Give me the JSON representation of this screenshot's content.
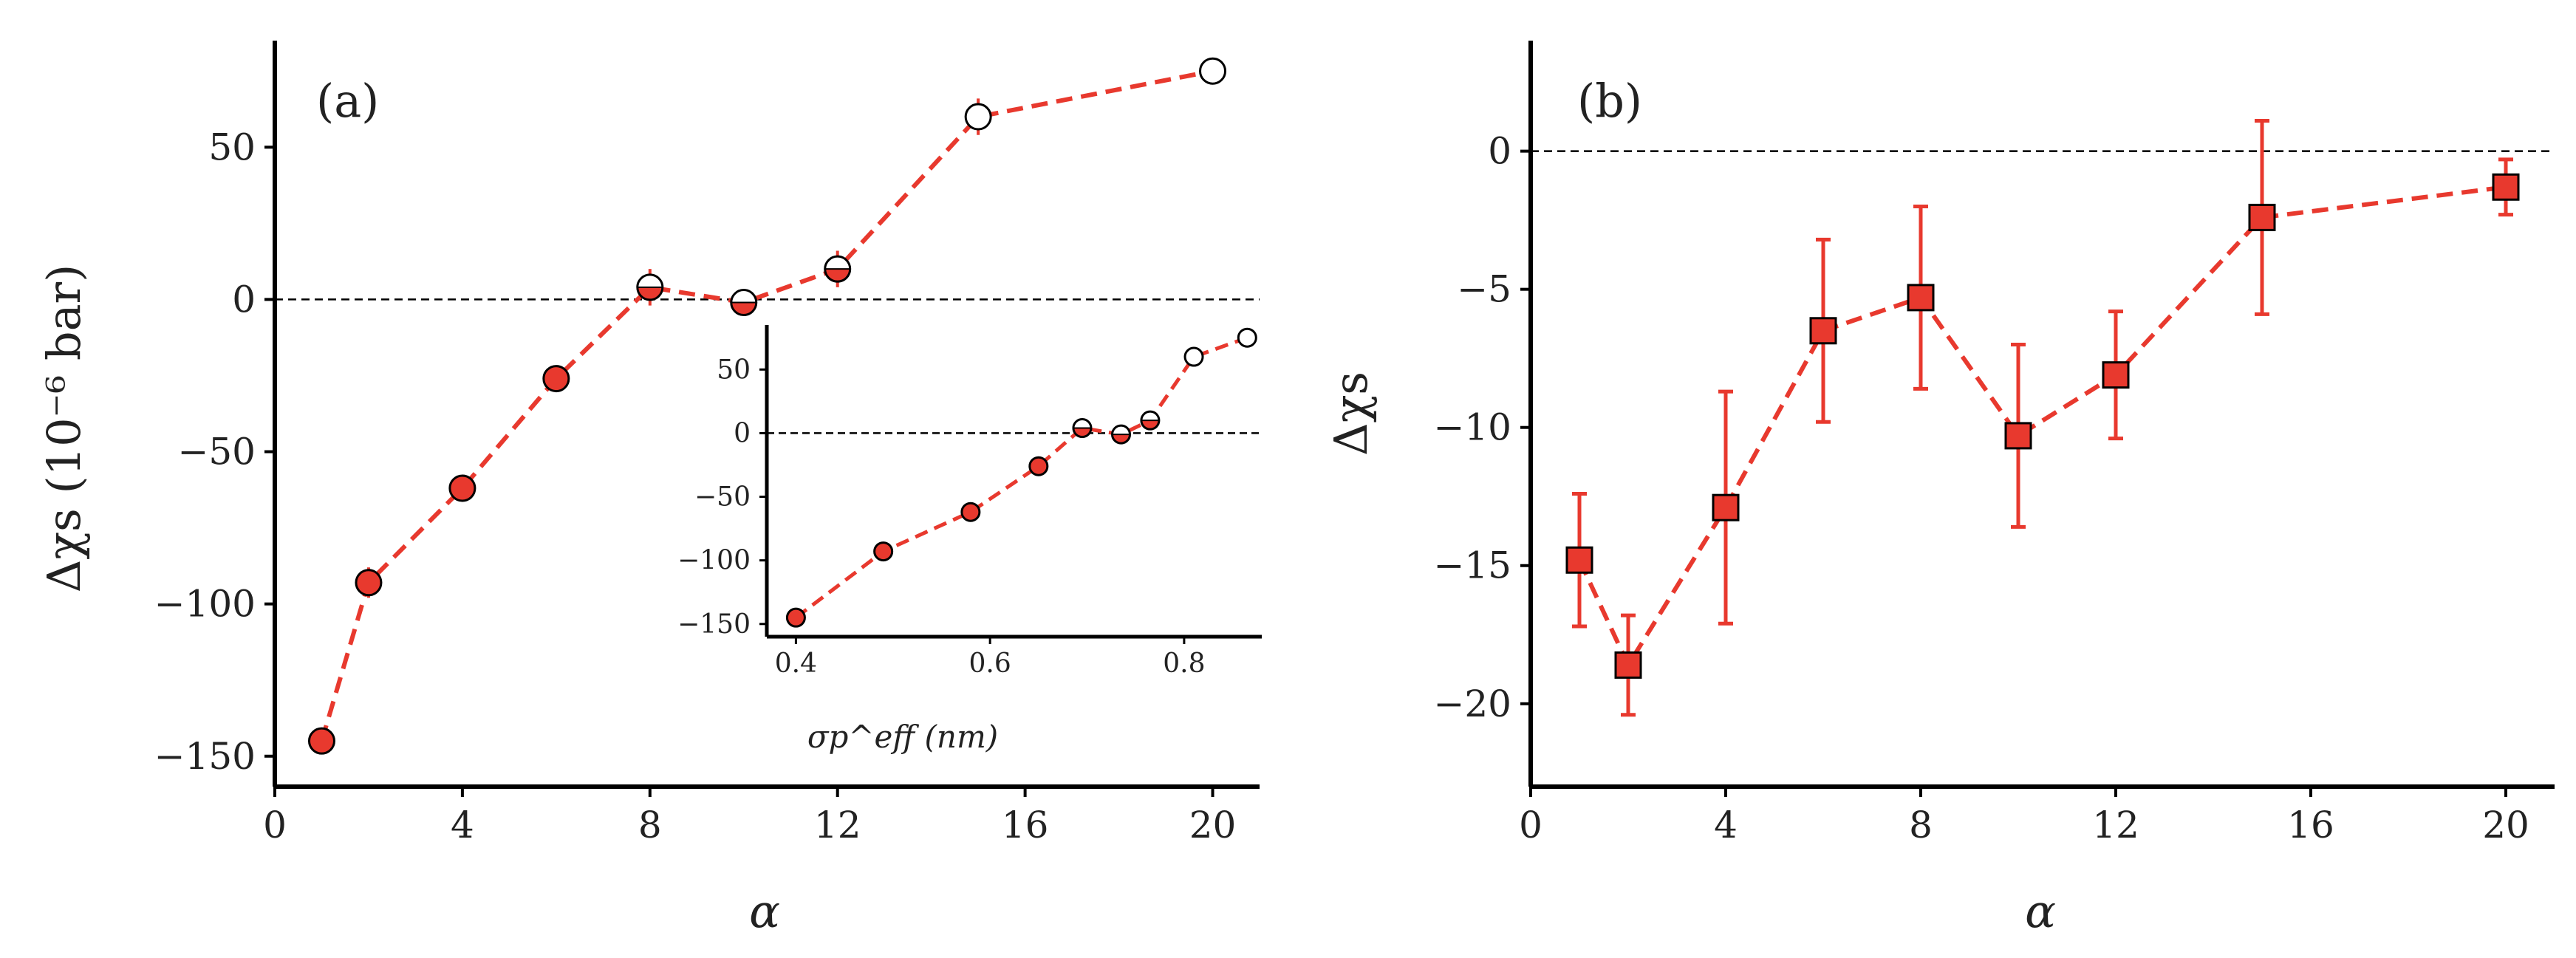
{
  "chart_data": [
    {
      "id": "a",
      "type": "line",
      "panel_label": "(a)",
      "xlabel": "α",
      "ylabel": "Δχs (10⁻⁶ bar)",
      "xlim": [
        0,
        21
      ],
      "ylim": [
        -160,
        85
      ],
      "xticks": [
        0,
        4,
        8,
        12,
        16,
        20
      ],
      "yticks": [
        -150,
        -100,
        -50,
        0,
        50
      ],
      "xtick_labels": [
        "0",
        "4",
        "8",
        "12",
        "16",
        "20"
      ],
      "ytick_labels": [
        "−150",
        "−100",
        "−50",
        "0",
        "50"
      ],
      "reference_line_y": 0,
      "series": [
        {
          "name": "Δχs",
          "color": "#e8392e",
          "marker": "circle",
          "x": [
            1,
            2,
            4,
            6,
            8,
            10,
            12,
            15,
            20
          ],
          "y": [
            -145,
            -93,
            -62,
            -26,
            4,
            -1,
            10,
            60,
            75
          ],
          "yerr": [
            4,
            5,
            3,
            4,
            6,
            3,
            6,
            6,
            3
          ],
          "fill": [
            "full",
            "full",
            "full",
            "full",
            "half",
            "half",
            "half",
            "none",
            "none"
          ]
        }
      ],
      "inset": {
        "xlabel": "σp^eff (nm)",
        "xlim": [
          0.37,
          0.88
        ],
        "ylim": [
          -160,
          85
        ],
        "xticks": [
          0.4,
          0.6,
          0.8
        ],
        "yticks": [
          -150,
          -100,
          -50,
          0,
          50
        ],
        "xtick_labels": [
          "0.4",
          "0.6",
          "0.8"
        ],
        "ytick_labels": [
          "−150",
          "−100",
          "−50",
          "0",
          "50"
        ],
        "reference_line_y": 0,
        "x": [
          0.4,
          0.49,
          0.58,
          0.65,
          0.695,
          0.735,
          0.765,
          0.81,
          0.865
        ],
        "y": [
          -145,
          -93,
          -62,
          -26,
          4,
          -1,
          10,
          60,
          75
        ],
        "fill": [
          "full",
          "full",
          "full",
          "full",
          "half",
          "half",
          "half",
          "none",
          "none"
        ]
      }
    },
    {
      "id": "b",
      "type": "line",
      "panel_label": "(b)",
      "xlabel": "α",
      "ylabel": "Δχs",
      "xlim": [
        0,
        21
      ],
      "ylim": [
        -23,
        4
      ],
      "xticks": [
        0,
        4,
        8,
        12,
        16,
        20
      ],
      "yticks": [
        -20,
        -15,
        -10,
        -5,
        0
      ],
      "xtick_labels": [
        "0",
        "4",
        "8",
        "12",
        "16",
        "20"
      ],
      "ytick_labels": [
        "−20",
        "−15",
        "−10",
        "−5",
        "0"
      ],
      "reference_line_y": 0,
      "series": [
        {
          "name": "Δχs",
          "color": "#e8392e",
          "marker": "square",
          "x": [
            1,
            2,
            4,
            6,
            8,
            10,
            12,
            15,
            20
          ],
          "y": [
            -14.8,
            -18.6,
            -12.9,
            -6.5,
            -5.3,
            -10.3,
            -8.1,
            -2.4,
            -1.3
          ],
          "yerr": [
            2.4,
            1.8,
            4.2,
            3.3,
            3.3,
            3.3,
            2.3,
            3.5,
            1.0
          ]
        }
      ]
    }
  ]
}
